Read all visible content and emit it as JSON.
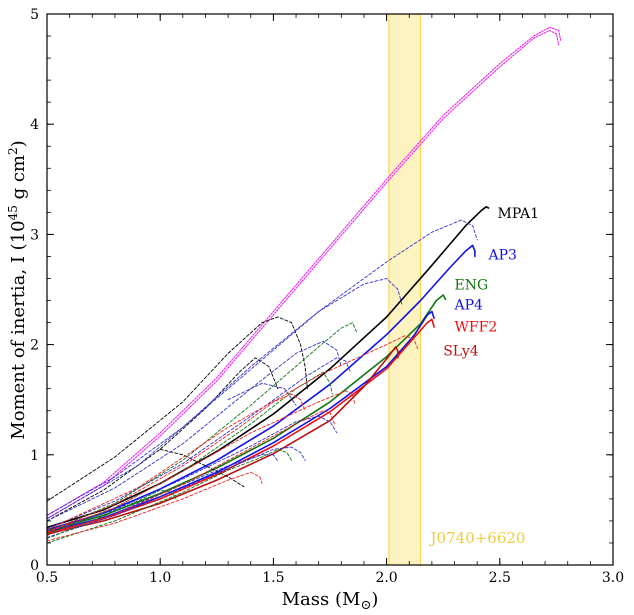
{
  "chart_data": {
    "type": "line",
    "xlabel": "Mass (M",
    "xlabel_sub": "⊙",
    "xlabel_close": ")",
    "ylabel": "Moment of inertia, I (10",
    "ylabel_sup": "45",
    "ylabel_mid": " g cm",
    "ylabel_sup2": "2",
    "ylabel_close": ")",
    "xlim": [
      0.5,
      3.0
    ],
    "ylim": [
      0,
      5
    ],
    "xticks": [
      "0.5",
      "1.0",
      "1.5",
      "2.0",
      "2.5",
      "3.0"
    ],
    "yticks": [
      "0",
      "1",
      "2",
      "3",
      "4",
      "5"
    ],
    "grid": false,
    "band": {
      "label": "J0740+6620",
      "x_range": [
        2.01,
        2.15
      ],
      "color": "#fdf3c0",
      "edge_color": "#f4d24a",
      "text_color": "#f2cc3a"
    },
    "series": [
      {
        "name": "MPA1",
        "color": "#000000",
        "style": "solid",
        "label_at": [
          2.49,
          3.15
        ],
        "points": [
          [
            0.5,
            0.34
          ],
          [
            0.75,
            0.5
          ],
          [
            1.0,
            0.74
          ],
          [
            1.25,
            1.03
          ],
          [
            1.5,
            1.37
          ],
          [
            1.75,
            1.78
          ],
          [
            2.0,
            2.25
          ],
          [
            2.2,
            2.72
          ],
          [
            2.35,
            3.08
          ],
          [
            2.42,
            3.22
          ],
          [
            2.44,
            3.25
          ],
          [
            2.45,
            3.24
          ]
        ]
      },
      {
        "name": "AP3",
        "color": "#1111ee",
        "style": "solid",
        "label_at": [
          2.45,
          2.77
        ],
        "points": [
          [
            0.5,
            0.32
          ],
          [
            0.75,
            0.47
          ],
          [
            1.0,
            0.69
          ],
          [
            1.25,
            0.95
          ],
          [
            1.5,
            1.26
          ],
          [
            1.75,
            1.64
          ],
          [
            2.0,
            2.09
          ],
          [
            2.15,
            2.4
          ],
          [
            2.28,
            2.7
          ],
          [
            2.35,
            2.85
          ],
          [
            2.38,
            2.9
          ],
          [
            2.39,
            2.85
          ],
          [
            2.39,
            2.8
          ]
        ]
      },
      {
        "name": "ENG",
        "color": "#117711",
        "style": "solid",
        "label_at": [
          2.3,
          2.5
        ],
        "points": [
          [
            0.5,
            0.31
          ],
          [
            0.75,
            0.45
          ],
          [
            1.0,
            0.65
          ],
          [
            1.25,
            0.88
          ],
          [
            1.5,
            1.15
          ],
          [
            1.75,
            1.48
          ],
          [
            2.0,
            1.89
          ],
          [
            2.15,
            2.19
          ],
          [
            2.22,
            2.4
          ],
          [
            2.25,
            2.45
          ],
          [
            2.26,
            2.41
          ]
        ]
      },
      {
        "name": "AP4",
        "color": "#1111ee",
        "style": "solid",
        "label_at": [
          2.3,
          2.32
        ],
        "points": [
          [
            0.5,
            0.3
          ],
          [
            0.75,
            0.43
          ],
          [
            1.0,
            0.62
          ],
          [
            1.25,
            0.84
          ],
          [
            1.5,
            1.11
          ],
          [
            1.75,
            1.42
          ],
          [
            2.0,
            1.8
          ],
          [
            2.12,
            2.08
          ],
          [
            2.18,
            2.27
          ],
          [
            2.2,
            2.3
          ],
          [
            2.21,
            2.24
          ]
        ]
      },
      {
        "name": "WFF2",
        "color": "#ee1111",
        "style": "solid",
        "label_at": [
          2.3,
          2.12
        ],
        "points": [
          [
            0.5,
            0.29
          ],
          [
            0.75,
            0.42
          ],
          [
            1.0,
            0.6
          ],
          [
            1.25,
            0.82
          ],
          [
            1.5,
            1.08
          ],
          [
            1.75,
            1.39
          ],
          [
            2.0,
            1.78
          ],
          [
            2.12,
            2.06
          ],
          [
            2.18,
            2.2
          ],
          [
            2.2,
            2.23
          ],
          [
            2.21,
            2.16
          ]
        ]
      },
      {
        "name": "SLy4",
        "color": "#bb1111",
        "style": "solid",
        "label_at": [
          2.25,
          1.9
        ],
        "points": [
          [
            0.5,
            0.28
          ],
          [
            0.75,
            0.4
          ],
          [
            1.0,
            0.56
          ],
          [
            1.25,
            0.77
          ],
          [
            1.5,
            1.01
          ],
          [
            1.75,
            1.31
          ],
          [
            1.9,
            1.62
          ],
          [
            2.0,
            1.87
          ],
          [
            2.04,
            1.98
          ],
          [
            2.05,
            1.94
          ],
          [
            2.05,
            1.88
          ]
        ]
      },
      {
        "name": "",
        "color": "#ee22ee",
        "style": "dotted",
        "points": [
          [
            0.5,
            0.45
          ],
          [
            0.75,
            0.75
          ],
          [
            1.0,
            1.2
          ],
          [
            1.25,
            1.7
          ],
          [
            1.5,
            2.3
          ],
          [
            1.75,
            2.9
          ],
          [
            2.0,
            3.5
          ],
          [
            2.25,
            4.08
          ],
          [
            2.5,
            4.55
          ],
          [
            2.65,
            4.8
          ],
          [
            2.72,
            4.88
          ],
          [
            2.76,
            4.85
          ],
          [
            2.77,
            4.75
          ]
        ]
      },
      {
        "name": "",
        "color": "#ee22ee",
        "style": "dotted",
        "points": [
          [
            0.5,
            0.42
          ],
          [
            0.75,
            0.72
          ],
          [
            1.0,
            1.17
          ],
          [
            1.25,
            1.67
          ],
          [
            1.5,
            2.27
          ],
          [
            1.75,
            2.87
          ],
          [
            2.0,
            3.47
          ],
          [
            2.25,
            4.05
          ],
          [
            2.5,
            4.52
          ],
          [
            2.65,
            4.78
          ],
          [
            2.72,
            4.85
          ],
          [
            2.75,
            4.82
          ],
          [
            2.76,
            4.72
          ]
        ]
      },
      {
        "name": "",
        "color": "#000000",
        "style": "dashed",
        "points": [
          [
            0.5,
            0.58
          ],
          [
            0.8,
            0.98
          ],
          [
            1.1,
            1.48
          ],
          [
            1.3,
            1.92
          ],
          [
            1.45,
            2.2
          ],
          [
            1.52,
            2.25
          ],
          [
            1.58,
            2.2
          ],
          [
            1.62,
            2.0
          ],
          [
            1.64,
            1.8
          ],
          [
            1.65,
            1.6
          ]
        ]
      },
      {
        "name": "",
        "color": "#000000",
        "style": "dashed",
        "points": [
          [
            0.5,
            0.4
          ],
          [
            0.75,
            0.68
          ],
          [
            1.0,
            1.05
          ],
          [
            1.2,
            1.42
          ],
          [
            1.35,
            1.75
          ],
          [
            1.42,
            1.88
          ],
          [
            1.48,
            1.8
          ],
          [
            1.52,
            1.6
          ]
        ]
      },
      {
        "name": "",
        "color": "#000000",
        "style": "dashed",
        "points": [
          [
            1.0,
            1.05
          ],
          [
            1.1,
            1.0
          ],
          [
            1.2,
            0.9
          ],
          [
            1.3,
            0.8
          ],
          [
            1.37,
            0.71
          ]
        ]
      },
      {
        "name": "",
        "color": "#3333cc",
        "style": "dashed",
        "points": [
          [
            0.5,
            0.45
          ],
          [
            0.8,
            0.8
          ],
          [
            1.1,
            1.25
          ],
          [
            1.4,
            1.8
          ],
          [
            1.7,
            2.3
          ],
          [
            1.9,
            2.55
          ],
          [
            2.0,
            2.6
          ],
          [
            2.05,
            2.5
          ],
          [
            2.07,
            2.35
          ]
        ]
      },
      {
        "name": "",
        "color": "#3333cc",
        "style": "dashed",
        "points": [
          [
            0.5,
            0.42
          ],
          [
            0.9,
            0.9
          ],
          [
            1.3,
            1.6
          ],
          [
            1.7,
            2.3
          ],
          [
            2.0,
            2.75
          ],
          [
            2.2,
            3.02
          ],
          [
            2.33,
            3.13
          ],
          [
            2.38,
            3.08
          ],
          [
            2.4,
            2.95
          ]
        ]
      },
      {
        "name": "",
        "color": "#3333cc",
        "style": "dashed",
        "points": [
          [
            0.5,
            0.4
          ],
          [
            0.8,
            0.7
          ],
          [
            1.1,
            1.1
          ],
          [
            1.4,
            1.6
          ],
          [
            1.6,
            1.92
          ],
          [
            1.72,
            2.03
          ],
          [
            1.78,
            1.95
          ],
          [
            1.8,
            1.8
          ]
        ]
      },
      {
        "name": "",
        "color": "#3333cc",
        "style": "dashed",
        "points": [
          [
            0.5,
            0.33
          ],
          [
            0.8,
            0.58
          ],
          [
            1.1,
            0.92
          ],
          [
            1.4,
            1.35
          ],
          [
            1.65,
            1.72
          ],
          [
            1.78,
            1.88
          ],
          [
            1.82,
            1.85
          ],
          [
            1.84,
            1.75
          ]
        ]
      },
      {
        "name": "",
        "color": "#3333cc",
        "style": "dashed",
        "points": [
          [
            0.5,
            0.3
          ],
          [
            0.8,
            0.5
          ],
          [
            1.1,
            0.78
          ],
          [
            1.4,
            1.08
          ],
          [
            1.6,
            1.3
          ],
          [
            1.7,
            1.35
          ],
          [
            1.75,
            1.3
          ],
          [
            1.78,
            1.2
          ]
        ]
      },
      {
        "name": "",
        "color": "#3333cc",
        "style": "dashed",
        "points": [
          [
            0.5,
            0.25
          ],
          [
            0.8,
            0.45
          ],
          [
            1.1,
            0.7
          ],
          [
            1.35,
            0.92
          ],
          [
            1.5,
            1.05
          ],
          [
            1.58,
            1.07
          ],
          [
            1.62,
            1.02
          ],
          [
            1.64,
            0.95
          ]
        ]
      },
      {
        "name": "",
        "color": "#3333cc",
        "style": "dashed",
        "points": [
          [
            0.5,
            0.27
          ],
          [
            0.8,
            0.47
          ],
          [
            1.1,
            0.73
          ],
          [
            1.3,
            0.9
          ],
          [
            1.45,
            1.0
          ],
          [
            1.5,
            1.0
          ],
          [
            1.52,
            0.94
          ]
        ]
      },
      {
        "name": "",
        "color": "#3333cc",
        "style": "dashed",
        "points": [
          [
            1.3,
            1.5
          ],
          [
            1.45,
            1.65
          ],
          [
            1.55,
            1.6
          ],
          [
            1.6,
            1.45
          ]
        ]
      },
      {
        "name": "",
        "color": "#117711",
        "style": "dashed",
        "points": [
          [
            0.5,
            0.28
          ],
          [
            0.8,
            0.52
          ],
          [
            1.1,
            0.85
          ],
          [
            1.4,
            1.28
          ],
          [
            1.6,
            1.6
          ],
          [
            1.72,
            1.75
          ],
          [
            1.75,
            1.65
          ],
          [
            1.76,
            1.55
          ]
        ]
      },
      {
        "name": "",
        "color": "#117711",
        "style": "dashed",
        "points": [
          [
            0.5,
            0.3
          ],
          [
            0.8,
            0.56
          ],
          [
            1.1,
            0.95
          ],
          [
            1.4,
            1.45
          ],
          [
            1.7,
            1.98
          ],
          [
            1.8,
            2.15
          ],
          [
            1.85,
            2.2
          ],
          [
            1.87,
            2.1
          ]
        ]
      },
      {
        "name": "",
        "color": "#117711",
        "style": "dashed",
        "points": [
          [
            0.5,
            0.2
          ],
          [
            0.8,
            0.4
          ],
          [
            1.1,
            0.66
          ],
          [
            1.3,
            0.86
          ],
          [
            1.45,
            0.98
          ],
          [
            1.52,
            1.05
          ],
          [
            1.56,
            1.02
          ],
          [
            1.58,
            0.95
          ]
        ]
      },
      {
        "name": "",
        "color": "#117711",
        "style": "dashed",
        "points": [
          [
            0.5,
            0.24
          ],
          [
            0.7,
            0.4
          ],
          [
            0.9,
            0.58
          ],
          [
            1.0,
            0.68
          ],
          [
            1.05,
            0.66
          ],
          [
            1.07,
            0.6
          ]
        ]
      },
      {
        "name": "",
        "color": "#ee2222",
        "style": "dashed",
        "points": [
          [
            0.5,
            0.3
          ],
          [
            0.8,
            0.52
          ],
          [
            1.1,
            0.85
          ],
          [
            1.4,
            1.2
          ],
          [
            1.7,
            1.48
          ],
          [
            1.82,
            1.58
          ],
          [
            1.85,
            1.55
          ],
          [
            1.86,
            1.45
          ]
        ]
      },
      {
        "name": "",
        "color": "#ee2222",
        "style": "dashed",
        "points": [
          [
            0.5,
            0.27
          ],
          [
            0.8,
            0.46
          ],
          [
            1.1,
            0.73
          ],
          [
            1.4,
            1.06
          ],
          [
            1.6,
            1.28
          ],
          [
            1.72,
            1.4
          ],
          [
            1.75,
            1.38
          ],
          [
            1.77,
            1.28
          ]
        ]
      },
      {
        "name": "",
        "color": "#ee2222",
        "style": "dashed",
        "points": [
          [
            0.5,
            0.32
          ],
          [
            0.9,
            0.7
          ],
          [
            1.3,
            1.25
          ],
          [
            1.7,
            1.72
          ],
          [
            2.0,
            2.0
          ],
          [
            2.08,
            2.08
          ],
          [
            2.12,
            2.05
          ],
          [
            2.14,
            1.95
          ]
        ]
      },
      {
        "name": "",
        "color": "#ee2222",
        "style": "dashed",
        "points": [
          [
            0.5,
            0.3
          ],
          [
            0.8,
            0.55
          ],
          [
            1.1,
            0.9
          ],
          [
            1.35,
            1.25
          ],
          [
            1.5,
            1.48
          ],
          [
            1.58,
            1.55
          ],
          [
            1.62,
            1.5
          ],
          [
            1.64,
            1.4
          ]
        ]
      },
      {
        "name": "",
        "color": "#ee2222",
        "style": "dashed",
        "points": [
          [
            0.5,
            0.22
          ],
          [
            0.8,
            0.38
          ],
          [
            1.1,
            0.6
          ],
          [
            1.3,
            0.77
          ],
          [
            1.4,
            0.84
          ],
          [
            1.44,
            0.8
          ],
          [
            1.45,
            0.74
          ]
        ]
      }
    ]
  }
}
